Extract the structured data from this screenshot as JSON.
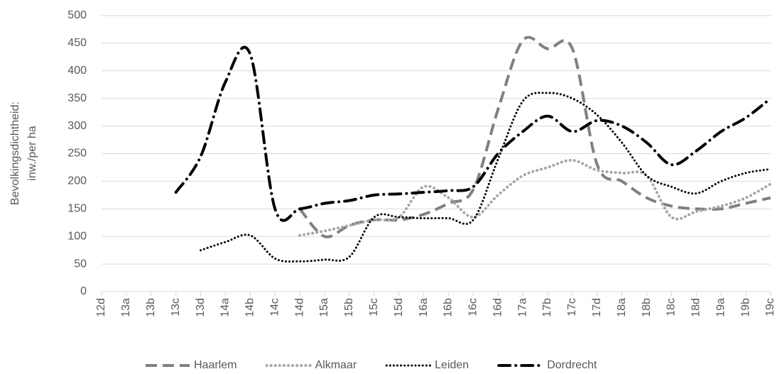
{
  "chart_data": {
    "type": "line",
    "y_label": [
      "Bevolkingsdichtheid:",
      "inw./per ha"
    ],
    "categories": [
      "12d",
      "13a",
      "13b",
      "13c",
      "13d",
      "14a",
      "14b",
      "14c",
      "14d",
      "15a",
      "15b",
      "15c",
      "15d",
      "16a",
      "16b",
      "16c",
      "16d",
      "17a",
      "17b",
      "17c",
      "17d",
      "18a",
      "18b",
      "18c",
      "18d",
      "19a",
      "19b",
      "19c"
    ],
    "ylim": [
      0,
      500
    ],
    "yticks": [
      0,
      50,
      100,
      150,
      200,
      250,
      300,
      350,
      400,
      450,
      500
    ],
    "grid": true,
    "smooth": true,
    "legend": "bottom",
    "series": [
      {
        "name": "Haarlem",
        "color": "#808080",
        "style": "dash",
        "values": [
          null,
          null,
          null,
          null,
          null,
          null,
          null,
          null,
          150,
          100,
          120,
          130,
          130,
          140,
          160,
          185,
          330,
          455,
          440,
          440,
          230,
          200,
          170,
          155,
          150,
          150,
          160,
          170
        ]
      },
      {
        "name": "Alkmaar",
        "color": "#a6a6a6",
        "style": "dot",
        "values": [
          null,
          null,
          null,
          null,
          null,
          null,
          null,
          null,
          102,
          110,
          120,
          130,
          135,
          190,
          170,
          135,
          175,
          210,
          225,
          238,
          220,
          215,
          210,
          135,
          145,
          155,
          170,
          195
        ]
      },
      {
        "name": "Leiden",
        "color": "#000000",
        "style": "fine-dot",
        "values": [
          null,
          null,
          null,
          null,
          75,
          90,
          102,
          60,
          55,
          58,
          63,
          135,
          135,
          133,
          133,
          130,
          240,
          345,
          360,
          350,
          320,
          270,
          210,
          190,
          178,
          200,
          215,
          222
        ]
      },
      {
        "name": "Dordrecht",
        "color": "#000000",
        "style": "dash-dot",
        "values": [
          null,
          null,
          null,
          180,
          245,
          380,
          430,
          150,
          150,
          160,
          165,
          175,
          177,
          180,
          183,
          190,
          250,
          290,
          318,
          290,
          310,
          300,
          270,
          230,
          255,
          290,
          315,
          350
        ]
      }
    ]
  }
}
